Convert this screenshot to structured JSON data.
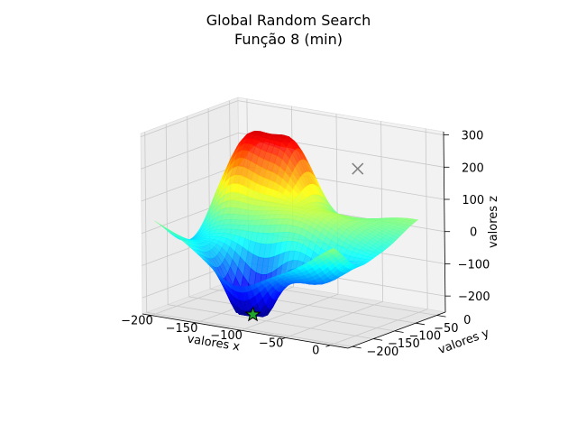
{
  "chart_data": {
    "type": "surface3d",
    "title": "Global Random Search",
    "subtitle": "Função 8 (min)",
    "xlabel": "valores x",
    "ylabel": "valores y",
    "zlabel": "valores z",
    "xlim": [
      -210,
      20
    ],
    "ylim": [
      -210,
      20
    ],
    "zlim": [
      -250,
      310
    ],
    "x_ticks": [
      -200,
      -150,
      -100,
      -50,
      0
    ],
    "y_ticks": [
      -200,
      -150,
      -100,
      -50,
      0
    ],
    "z_ticks": [
      -200,
      -100,
      0,
      100,
      200,
      300
    ],
    "x_tick_labels": [
      "−200",
      "−150",
      "−100",
      "−50",
      "0"
    ],
    "y_tick_labels": [
      "−200",
      "−150",
      "−100",
      "−50",
      "0"
    ],
    "z_tick_labels": [
      "−200",
      "−100",
      "0",
      "100",
      "200",
      "300"
    ],
    "colormap": "jet",
    "grid": true,
    "markers": [
      {
        "marker": "x",
        "x": -60,
        "y": -15,
        "z": 175,
        "color": "#808080"
      },
      {
        "marker": "star",
        "x": -110,
        "y": -160,
        "z": -230,
        "color": "#1fa32a"
      }
    ]
  }
}
